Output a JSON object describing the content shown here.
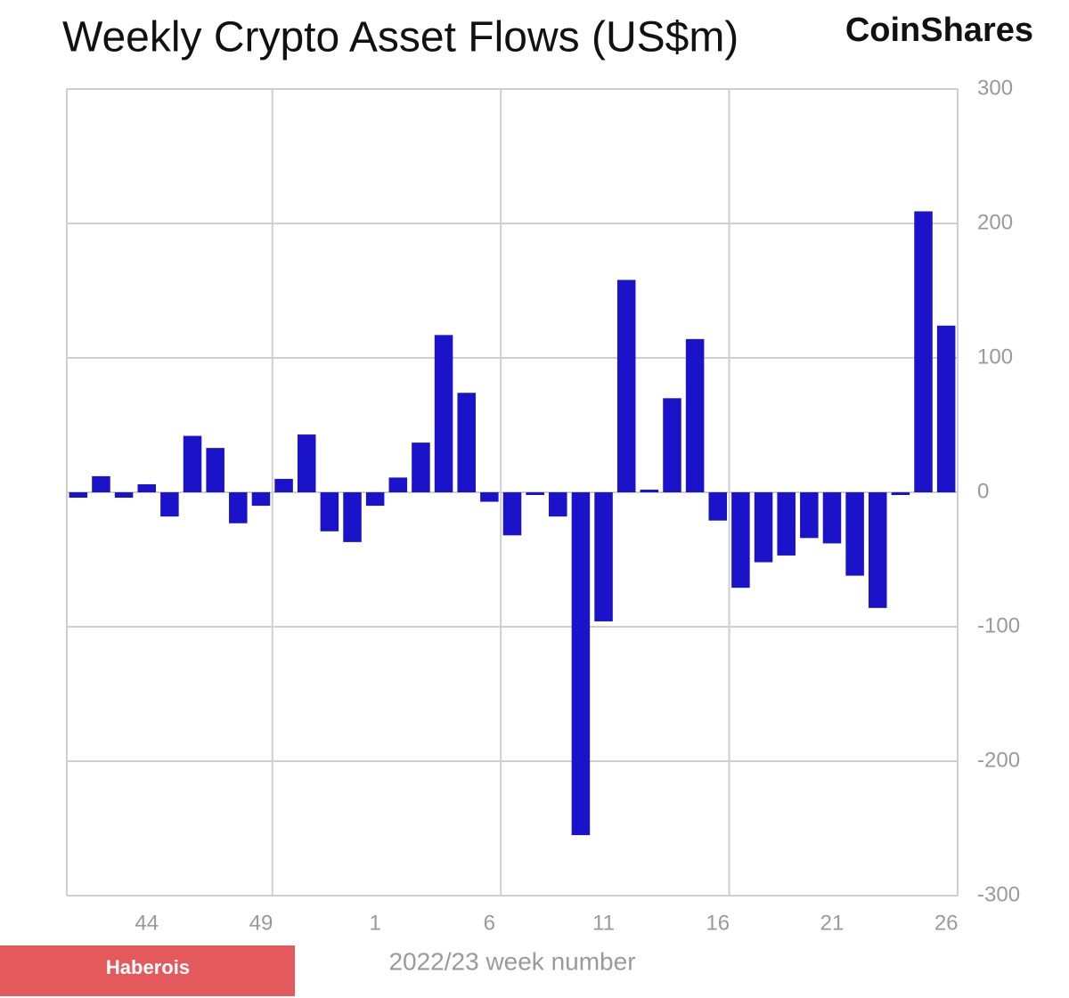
{
  "brand": "CoinShares",
  "watermark": "Haberois",
  "chart_data": {
    "type": "bar",
    "title": "Weekly Crypto Asset Flows (US$m)",
    "x_label": "2022/23 week number",
    "categories": [
      null,
      null,
      null,
      "44",
      null,
      null,
      null,
      null,
      "49",
      null,
      null,
      null,
      null,
      "1",
      null,
      null,
      null,
      null,
      "6",
      null,
      null,
      null,
      null,
      "11",
      null,
      null,
      null,
      null,
      "16",
      null,
      null,
      null,
      null,
      "21",
      null,
      null,
      null,
      null,
      "26"
    ],
    "values": [
      -4,
      12,
      -4,
      6,
      -18,
      42,
      33,
      -23,
      -10,
      10,
      43,
      -29,
      -37,
      -10,
      11,
      37,
      117,
      74,
      -7,
      -32,
      -2,
      -18,
      -255,
      -96,
      158,
      2,
      70,
      114,
      -21,
      -71,
      -52,
      -47,
      -34,
      -38,
      -62,
      -86,
      -2,
      209,
      124
    ],
    "color": "#1b13c9",
    "ylim": [
      -300,
      300
    ],
    "yticks": [
      -300,
      -200,
      -100,
      0,
      100,
      200,
      300
    ],
    "grid": true
  }
}
